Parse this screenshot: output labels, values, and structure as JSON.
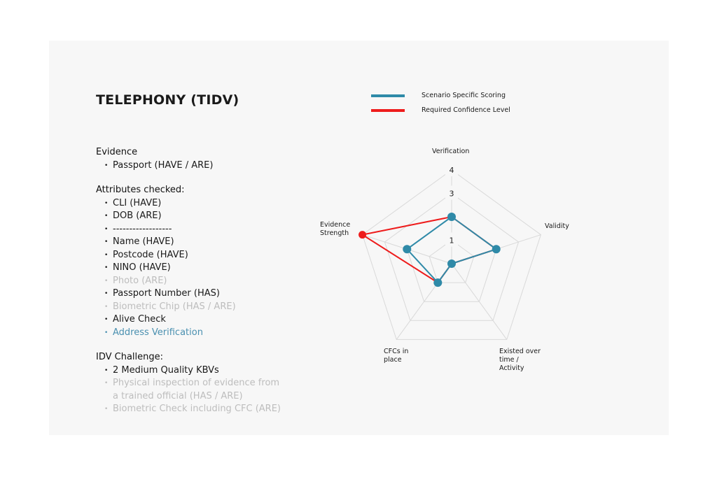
{
  "title": "TELEPHONY (TIDV)",
  "sections": [
    {
      "heading": "Evidence",
      "items": [
        {
          "text": "Passport (HAVE / ARE)",
          "state": "normal"
        }
      ]
    },
    {
      "heading": "Attributes checked:",
      "items": [
        {
          "text": "CLI (HAVE)",
          "state": "normal"
        },
        {
          "text": "DOB (ARE)",
          "state": "normal"
        },
        {
          "text": "------------------",
          "state": "normal"
        },
        {
          "text": "Name (HAVE)",
          "state": "normal"
        },
        {
          "text": "Postcode (HAVE)",
          "state": "normal"
        },
        {
          "text": "NINO (HAVE)",
          "state": "normal"
        },
        {
          "text": "Photo (ARE)",
          "state": "muted"
        },
        {
          "text": "Passport Number (HAS)",
          "state": "normal"
        },
        {
          "text": "Biometric Chip (HAS / ARE)",
          "state": "muted"
        },
        {
          "text": "Alive Check",
          "state": "normal"
        },
        {
          "text": "Address Verification",
          "state": "link"
        }
      ]
    },
    {
      "heading": "IDV Challenge:",
      "items": [
        {
          "text": "2 Medium Quality KBVs",
          "state": "normal"
        },
        {
          "text": "Physical inspection of evidence from a trained official (HAS / ARE)",
          "state": "muted"
        },
        {
          "text": "Biometric Check including CFC (ARE)",
          "state": "muted"
        }
      ]
    }
  ],
  "chart_data": {
    "type": "radar",
    "axes": [
      "Verification",
      "Validity",
      "Existed over time / Activity",
      "CFCs in place",
      "Evidence Strength"
    ],
    "rlim": [
      0,
      4
    ],
    "tick_labels": [
      "1",
      "3",
      "4"
    ],
    "grid": true,
    "legend_position": "top",
    "series": [
      {
        "name": "Scenario Specific Scoring",
        "color": "#2f8aa8",
        "values": [
          2,
          2,
          0,
          1,
          2
        ]
      },
      {
        "name": "Required Confidence Level",
        "color": "#ee1c1c",
        "values": [
          2,
          2,
          0,
          1,
          4
        ]
      }
    ]
  }
}
